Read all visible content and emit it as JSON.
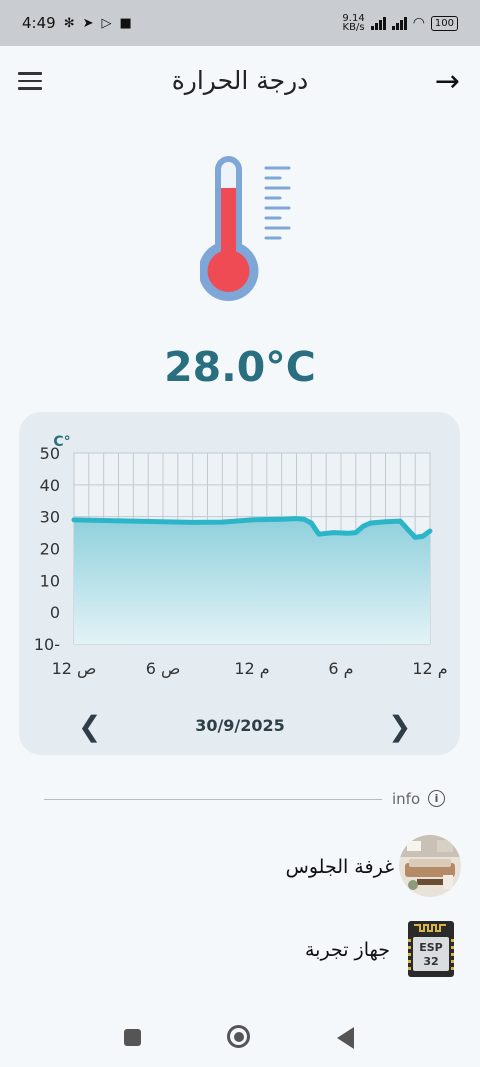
{
  "status": {
    "time": "4:49",
    "net_speed": "9.14",
    "net_unit": "KB/s",
    "battery": "100"
  },
  "header": {
    "title": "درجة الحرارة",
    "back_icon": "arrow-right-icon",
    "menu_icon": "hamburger-menu-icon"
  },
  "reading": {
    "value": "28.0°C"
  },
  "colors": {
    "accent": "#2a6f80",
    "line": "#2bb5c9",
    "mercury": "#ef4b55",
    "tube": "#7ea7d8"
  },
  "chart_data": {
    "type": "area",
    "unit_label": "C°",
    "ylim": [
      -10,
      50
    ],
    "yticks": [
      "50",
      "40",
      "30",
      "20",
      "10",
      "0",
      "10-"
    ],
    "xlim": [
      0,
      24
    ],
    "xtick_values": [
      0,
      6,
      12,
      18,
      24
    ],
    "xticks": [
      "12 ص",
      "6 ص",
      "12 م",
      "6 م",
      "12 م"
    ],
    "x": [
      0,
      2,
      4,
      6,
      8,
      10,
      12,
      14,
      15,
      15.5,
      16,
      16.5,
      17.5,
      18.5,
      19,
      19.5,
      20,
      21,
      22,
      22.5,
      23,
      23.5,
      24
    ],
    "y": [
      29,
      28.8,
      28.6,
      28.4,
      28.2,
      28.3,
      29,
      29.2,
      29.4,
      29.2,
      28,
      24.5,
      25,
      24.8,
      25,
      27,
      28,
      28.4,
      28.6,
      26,
      23.5,
      23.8,
      25.5
    ],
    "grid": true,
    "legend": "none"
  },
  "date_nav": {
    "date": "30/9/2025",
    "prev_icon": "chevron-left-icon",
    "next_icon": "chevron-right-icon"
  },
  "info": {
    "label": "info",
    "icon": "info-icon"
  },
  "rows": [
    {
      "label": "غرفة الجلوس",
      "icon": "living-room-image"
    },
    {
      "label": "جهاز تجربة",
      "icon": "esp32-chip-icon",
      "chip_text_1": "ESP",
      "chip_text_2": "32"
    }
  ]
}
